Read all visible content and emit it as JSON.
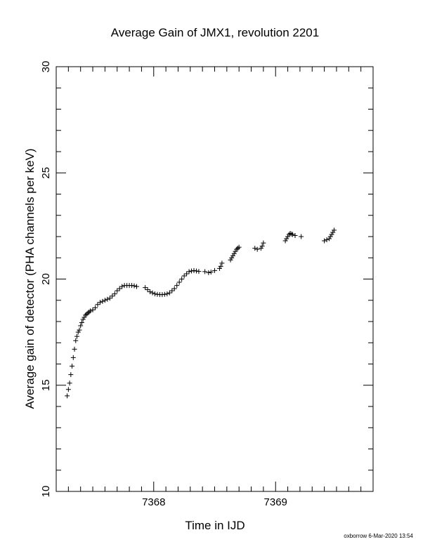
{
  "chart_data": {
    "type": "scatter",
    "title": "Average Gain of JMX1, revolution 2201",
    "xlabel": "Time in IJD",
    "ylabel": "Average gain of detector (PHA channels per keV)",
    "xlim": [
      7367.2,
      7369.8
    ],
    "ylim": [
      10,
      30
    ],
    "x_ticks": [
      "7368",
      "7369"
    ],
    "y_ticks": [
      "10",
      "15",
      "20",
      "25",
      "30"
    ],
    "marker": "plus",
    "grid": false,
    "footer": "oxborrow  6-Mar-2020 13:54",
    "points": [
      [
        7367.29,
        14.5
      ],
      [
        7367.3,
        14.8
      ],
      [
        7367.31,
        15.1
      ],
      [
        7367.32,
        15.5
      ],
      [
        7367.33,
        15.9
      ],
      [
        7367.34,
        16.3
      ],
      [
        7367.35,
        16.7
      ],
      [
        7367.36,
        17.1
      ],
      [
        7367.37,
        17.3
      ],
      [
        7367.38,
        17.5
      ],
      [
        7367.39,
        17.6
      ],
      [
        7367.4,
        17.8
      ],
      [
        7367.41,
        17.95
      ],
      [
        7367.42,
        18.1
      ],
      [
        7367.43,
        18.2
      ],
      [
        7367.44,
        18.3
      ],
      [
        7367.45,
        18.35
      ],
      [
        7367.46,
        18.4
      ],
      [
        7367.47,
        18.45
      ],
      [
        7367.48,
        18.5
      ],
      [
        7367.5,
        18.55
      ],
      [
        7367.52,
        18.65
      ],
      [
        7367.54,
        18.8
      ],
      [
        7367.56,
        18.9
      ],
      [
        7367.58,
        18.95
      ],
      [
        7367.6,
        19.0
      ],
      [
        7367.62,
        19.05
      ],
      [
        7367.64,
        19.1
      ],
      [
        7367.66,
        19.2
      ],
      [
        7367.68,
        19.3
      ],
      [
        7367.7,
        19.45
      ],
      [
        7367.72,
        19.55
      ],
      [
        7367.74,
        19.65
      ],
      [
        7367.76,
        19.7
      ],
      [
        7367.78,
        19.7
      ],
      [
        7367.8,
        19.7
      ],
      [
        7367.82,
        19.7
      ],
      [
        7367.84,
        19.68
      ],
      [
        7367.86,
        19.65
      ],
      [
        7367.93,
        19.6
      ],
      [
        7367.95,
        19.5
      ],
      [
        7367.97,
        19.4
      ],
      [
        7367.99,
        19.35
      ],
      [
        7368.01,
        19.3
      ],
      [
        7368.03,
        19.28
      ],
      [
        7368.05,
        19.27
      ],
      [
        7368.07,
        19.27
      ],
      [
        7368.09,
        19.28
      ],
      [
        7368.11,
        19.3
      ],
      [
        7368.13,
        19.35
      ],
      [
        7368.15,
        19.45
      ],
      [
        7368.17,
        19.55
      ],
      [
        7368.19,
        19.7
      ],
      [
        7368.21,
        19.85
      ],
      [
        7368.23,
        20.0
      ],
      [
        7368.25,
        20.15
      ],
      [
        7368.27,
        20.25
      ],
      [
        7368.29,
        20.35
      ],
      [
        7368.31,
        20.38
      ],
      [
        7368.33,
        20.4
      ],
      [
        7368.35,
        20.38
      ],
      [
        7368.37,
        20.36
      ],
      [
        7368.42,
        20.35
      ],
      [
        7368.45,
        20.3
      ],
      [
        7368.47,
        20.33
      ],
      [
        7368.5,
        20.4
      ],
      [
        7368.54,
        20.5
      ],
      [
        7368.55,
        20.6
      ],
      [
        7368.56,
        20.75
      ],
      [
        7368.63,
        20.9
      ],
      [
        7368.64,
        21.0
      ],
      [
        7368.65,
        21.1
      ],
      [
        7368.66,
        21.2
      ],
      [
        7368.67,
        21.3
      ],
      [
        7368.68,
        21.4
      ],
      [
        7368.69,
        21.45
      ],
      [
        7368.7,
        21.5
      ],
      [
        7368.83,
        21.45
      ],
      [
        7368.85,
        21.4
      ],
      [
        7368.88,
        21.45
      ],
      [
        7368.89,
        21.55
      ],
      [
        7368.9,
        21.7
      ],
      [
        7369.08,
        21.8
      ],
      [
        7369.09,
        21.9
      ],
      [
        7369.1,
        22.0
      ],
      [
        7369.11,
        22.1
      ],
      [
        7369.12,
        22.15
      ],
      [
        7369.13,
        22.12
      ],
      [
        7369.14,
        22.1
      ],
      [
        7369.16,
        22.05
      ],
      [
        7369.21,
        22.0
      ],
      [
        7369.4,
        21.8
      ],
      [
        7369.42,
        21.85
      ],
      [
        7369.44,
        21.9
      ],
      [
        7369.45,
        22.0
      ],
      [
        7369.46,
        22.1
      ],
      [
        7369.47,
        22.2
      ],
      [
        7369.48,
        22.3
      ]
    ]
  }
}
